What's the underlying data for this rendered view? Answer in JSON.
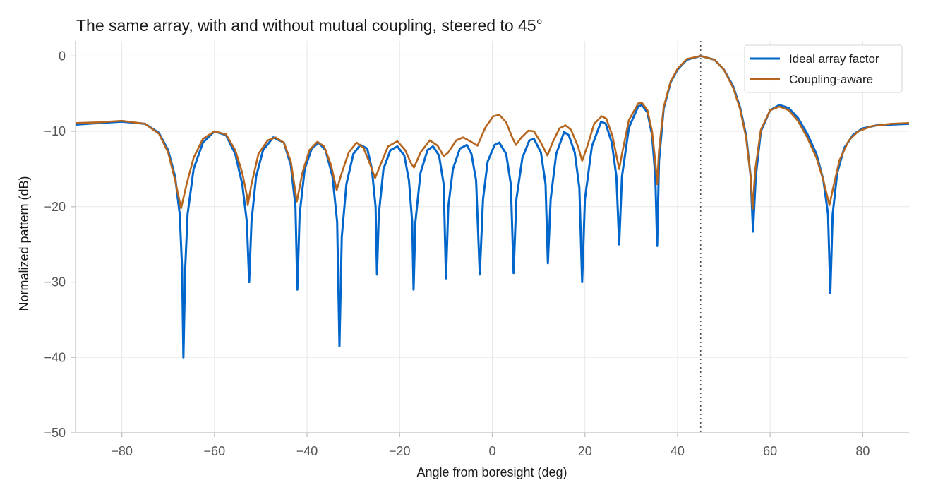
{
  "chart_data": {
    "type": "line",
    "title": "The same array, with and without mutual coupling, steered to 45°",
    "xlabel": "Angle from boresight (deg)",
    "ylabel": "Normalized pattern (dB)",
    "xlim": [
      -90,
      90
    ],
    "ylim": [
      -50,
      2
    ],
    "xticks": [
      -80,
      -60,
      -40,
      -20,
      0,
      20,
      40,
      60,
      80
    ],
    "xtick_labels": [
      "−80",
      "−60",
      "−40",
      "−20",
      "0",
      "20",
      "40",
      "60",
      "80"
    ],
    "yticks": [
      0,
      -10,
      -20,
      -30,
      -40,
      -50
    ],
    "ytick_labels": [
      "0",
      "−10",
      "−20",
      "−30",
      "−40",
      "−50"
    ],
    "grid": true,
    "legend_position": "top-right",
    "steer_angle": 45,
    "colors": {
      "ideal": "#0066cc",
      "coupling": "#b5651d",
      "steer_line": "#555555"
    },
    "series": [
      {
        "name": "Ideal array factor",
        "color": "#0066cc",
        "points": [
          [
            -90,
            -9.1
          ],
          [
            -85,
            -8.9
          ],
          [
            -80,
            -8.7
          ],
          [
            -75,
            -9.0
          ],
          [
            -72,
            -10.2
          ],
          [
            -70,
            -12.5
          ],
          [
            -68.5,
            -16.0
          ],
          [
            -67.5,
            -21.0
          ],
          [
            -67,
            -28.0
          ],
          [
            -66.7,
            -40.0
          ],
          [
            -66.3,
            -28.0
          ],
          [
            -65.8,
            -21.0
          ],
          [
            -64.5,
            -15.0
          ],
          [
            -62.5,
            -11.5
          ],
          [
            -60,
            -10.0
          ],
          [
            -57.5,
            -10.5
          ],
          [
            -55.5,
            -13.0
          ],
          [
            -54,
            -17.0
          ],
          [
            -53,
            -22.0
          ],
          [
            -52.5,
            -30.0
          ],
          [
            -52,
            -22.0
          ],
          [
            -51,
            -16.0
          ],
          [
            -49.5,
            -12.5
          ],
          [
            -47.3,
            -10.8
          ],
          [
            -45,
            -11.5
          ],
          [
            -43.5,
            -14.5
          ],
          [
            -42.5,
            -20.0
          ],
          [
            -42.1,
            -31.0
          ],
          [
            -41.6,
            -21.0
          ],
          [
            -40.5,
            -15.0
          ],
          [
            -39,
            -12.3
          ],
          [
            -37.5,
            -11.5
          ],
          [
            -36,
            -12.5
          ],
          [
            -34.5,
            -16.0
          ],
          [
            -33.5,
            -22.0
          ],
          [
            -33.0,
            -38.5
          ],
          [
            -32.5,
            -24.0
          ],
          [
            -31.5,
            -17.0
          ],
          [
            -30,
            -13.0
          ],
          [
            -28.5,
            -11.8
          ],
          [
            -27,
            -12.3
          ],
          [
            -26,
            -15.0
          ],
          [
            -25.2,
            -20.0
          ],
          [
            -24.9,
            -29.0
          ],
          [
            -24.5,
            -21.0
          ],
          [
            -23.5,
            -15.0
          ],
          [
            -22,
            -12.5
          ],
          [
            -20.5,
            -12.0
          ],
          [
            -19,
            -13.2
          ],
          [
            -18,
            -16.5
          ],
          [
            -17.3,
            -22.0
          ],
          [
            -17.0,
            -31.0
          ],
          [
            -16.6,
            -22.0
          ],
          [
            -15.5,
            -15.5
          ],
          [
            -14,
            -12.5
          ],
          [
            -12.8,
            -12.0
          ],
          [
            -11.5,
            -13.2
          ],
          [
            -10.5,
            -17.0
          ],
          [
            -10.0,
            -29.5
          ],
          [
            -9.5,
            -20.0
          ],
          [
            -8.5,
            -15.0
          ],
          [
            -7.0,
            -12.3
          ],
          [
            -5.5,
            -11.8
          ],
          [
            -4.5,
            -13.0
          ],
          [
            -3.5,
            -16.5
          ],
          [
            -2.7,
            -29.0
          ],
          [
            -2.0,
            -19.0
          ],
          [
            -1.0,
            -14.0
          ],
          [
            0.5,
            -11.8
          ],
          [
            1.5,
            -11.5
          ],
          [
            3.0,
            -13.0
          ],
          [
            4.0,
            -17.0
          ],
          [
            4.6,
            -28.8
          ],
          [
            5.2,
            -19.0
          ],
          [
            6.5,
            -13.5
          ],
          [
            8.0,
            -11.2
          ],
          [
            9.0,
            -11.0
          ],
          [
            10.5,
            -12.8
          ],
          [
            11.5,
            -17.0
          ],
          [
            12.0,
            -27.5
          ],
          [
            12.6,
            -19.0
          ],
          [
            13.8,
            -13.0
          ],
          [
            15.5,
            -10.1
          ],
          [
            16.5,
            -10.5
          ],
          [
            17.8,
            -12.8
          ],
          [
            18.8,
            -17.5
          ],
          [
            19.4,
            -30.0
          ],
          [
            20.0,
            -19.0
          ],
          [
            21.5,
            -12.0
          ],
          [
            23.5,
            -8.7
          ],
          [
            24.5,
            -9.0
          ],
          [
            25.8,
            -11.5
          ],
          [
            26.8,
            -16.0
          ],
          [
            27.4,
            -25.0
          ],
          [
            28.0,
            -16.0
          ],
          [
            29.5,
            -9.5
          ],
          [
            31.5,
            -6.7
          ],
          [
            32.3,
            -6.5
          ],
          [
            33.5,
            -7.5
          ],
          [
            34.5,
            -10.5
          ],
          [
            35.2,
            -16.0
          ],
          [
            35.6,
            -25.2
          ],
          [
            36.0,
            -14.0
          ],
          [
            37.0,
            -7.0
          ],
          [
            38.5,
            -3.5
          ],
          [
            40.0,
            -1.8
          ],
          [
            42.0,
            -0.5
          ],
          [
            45.0,
            0.0
          ],
          [
            48.0,
            -0.5
          ],
          [
            50.0,
            -1.8
          ],
          [
            52.0,
            -4.0
          ],
          [
            53.5,
            -6.8
          ],
          [
            54.8,
            -10.5
          ],
          [
            55.8,
            -16.0
          ],
          [
            56.3,
            -23.3
          ],
          [
            56.9,
            -16.0
          ],
          [
            58.0,
            -10.0
          ],
          [
            60.0,
            -7.2
          ],
          [
            62.0,
            -6.5
          ],
          [
            64.0,
            -6.9
          ],
          [
            66.0,
            -8.2
          ],
          [
            68.0,
            -10.3
          ],
          [
            70.0,
            -13.0
          ],
          [
            71.5,
            -16.5
          ],
          [
            72.5,
            -21.0
          ],
          [
            73.0,
            -31.5
          ],
          [
            73.5,
            -21.0
          ],
          [
            74.5,
            -15.5
          ],
          [
            76.0,
            -12.2
          ],
          [
            78.0,
            -10.4
          ],
          [
            80.0,
            -9.6
          ],
          [
            83.0,
            -9.2
          ],
          [
            86.0,
            -9.1
          ],
          [
            90.0,
            -9.0
          ]
        ]
      },
      {
        "name": "Coupling-aware",
        "color": "#b5651d",
        "points": [
          [
            -90,
            -8.9
          ],
          [
            -85,
            -8.8
          ],
          [
            -80,
            -8.6
          ],
          [
            -75,
            -9.0
          ],
          [
            -72,
            -10.3
          ],
          [
            -70,
            -12.8
          ],
          [
            -68.5,
            -16.5
          ],
          [
            -67.2,
            -20.2
          ],
          [
            -66,
            -17.0
          ],
          [
            -64.5,
            -13.5
          ],
          [
            -62.5,
            -11.0
          ],
          [
            -60,
            -10.0
          ],
          [
            -57.5,
            -10.4
          ],
          [
            -55.5,
            -12.5
          ],
          [
            -54,
            -15.5
          ],
          [
            -53,
            -18.5
          ],
          [
            -52.8,
            -19.8
          ],
          [
            -52,
            -17.0
          ],
          [
            -50.5,
            -13.0
          ],
          [
            -48.5,
            -11.2
          ],
          [
            -46.8,
            -10.8
          ],
          [
            -45,
            -11.5
          ],
          [
            -43.5,
            -14.0
          ],
          [
            -42.2,
            -19.3
          ],
          [
            -41,
            -15.5
          ],
          [
            -39.5,
            -12.5
          ],
          [
            -37.8,
            -11.4
          ],
          [
            -36.3,
            -12.0
          ],
          [
            -34.8,
            -14.5
          ],
          [
            -33.6,
            -17.8
          ],
          [
            -32.5,
            -15.5
          ],
          [
            -31,
            -12.8
          ],
          [
            -29.3,
            -11.5
          ],
          [
            -27.8,
            -12.2
          ],
          [
            -26.3,
            -14.5
          ],
          [
            -25.3,
            -16.2
          ],
          [
            -24.2,
            -14.5
          ],
          [
            -22.5,
            -12.0
          ],
          [
            -20.5,
            -11.3
          ],
          [
            -18.8,
            -12.5
          ],
          [
            -17.5,
            -14.3
          ],
          [
            -16.9,
            -14.8
          ],
          [
            -15.5,
            -12.8
          ],
          [
            -13.5,
            -11.2
          ],
          [
            -11.8,
            -11.9
          ],
          [
            -10.5,
            -13.3
          ],
          [
            -9.5,
            -12.8
          ],
          [
            -7.8,
            -11.2
          ],
          [
            -6.3,
            -10.8
          ],
          [
            -4.8,
            -11.3
          ],
          [
            -3.2,
            -11.9
          ],
          [
            -1.5,
            -9.5
          ],
          [
            0.2,
            -8.0
          ],
          [
            1.5,
            -7.8
          ],
          [
            3.0,
            -8.8
          ],
          [
            4.3,
            -10.8
          ],
          [
            5.1,
            -11.8
          ],
          [
            6.3,
            -10.8
          ],
          [
            7.8,
            -9.9
          ],
          [
            9.0,
            -10.0
          ],
          [
            10.5,
            -11.5
          ],
          [
            11.9,
            -13.2
          ],
          [
            13.0,
            -11.5
          ],
          [
            14.5,
            -9.6
          ],
          [
            15.8,
            -9.2
          ],
          [
            17.0,
            -9.8
          ],
          [
            18.5,
            -12.0
          ],
          [
            19.4,
            -13.9
          ],
          [
            20.5,
            -12.0
          ],
          [
            22.0,
            -9.0
          ],
          [
            23.6,
            -8.0
          ],
          [
            24.6,
            -8.3
          ],
          [
            25.9,
            -10.5
          ],
          [
            26.9,
            -13.5
          ],
          [
            27.4,
            -15.0
          ],
          [
            28.0,
            -13.0
          ],
          [
            29.5,
            -8.5
          ],
          [
            31.5,
            -6.3
          ],
          [
            32.3,
            -6.2
          ],
          [
            33.5,
            -7.2
          ],
          [
            34.5,
            -10.0
          ],
          [
            35.2,
            -14.0
          ],
          [
            35.6,
            -17.0
          ],
          [
            36.0,
            -12.5
          ],
          [
            37.0,
            -6.8
          ],
          [
            38.5,
            -3.4
          ],
          [
            40.0,
            -1.7
          ],
          [
            42.0,
            -0.4
          ],
          [
            45.0,
            0.0
          ],
          [
            48.0,
            -0.5
          ],
          [
            50.0,
            -1.8
          ],
          [
            52.0,
            -4.2
          ],
          [
            53.5,
            -7.0
          ],
          [
            54.8,
            -10.8
          ],
          [
            55.8,
            -16.0
          ],
          [
            56.2,
            -20.3
          ],
          [
            56.8,
            -15.0
          ],
          [
            58.0,
            -9.8
          ],
          [
            60.0,
            -7.2
          ],
          [
            62.0,
            -6.7
          ],
          [
            64.0,
            -7.2
          ],
          [
            66.0,
            -8.6
          ],
          [
            68.0,
            -10.8
          ],
          [
            70.0,
            -13.5
          ],
          [
            71.5,
            -16.5
          ],
          [
            72.8,
            -19.8
          ],
          [
            73.6,
            -17.5
          ],
          [
            75.0,
            -13.8
          ],
          [
            77.0,
            -11.2
          ],
          [
            79.0,
            -10.0
          ],
          [
            82.0,
            -9.3
          ],
          [
            86.0,
            -9.0
          ],
          [
            90.0,
            -8.9
          ]
        ]
      }
    ]
  }
}
